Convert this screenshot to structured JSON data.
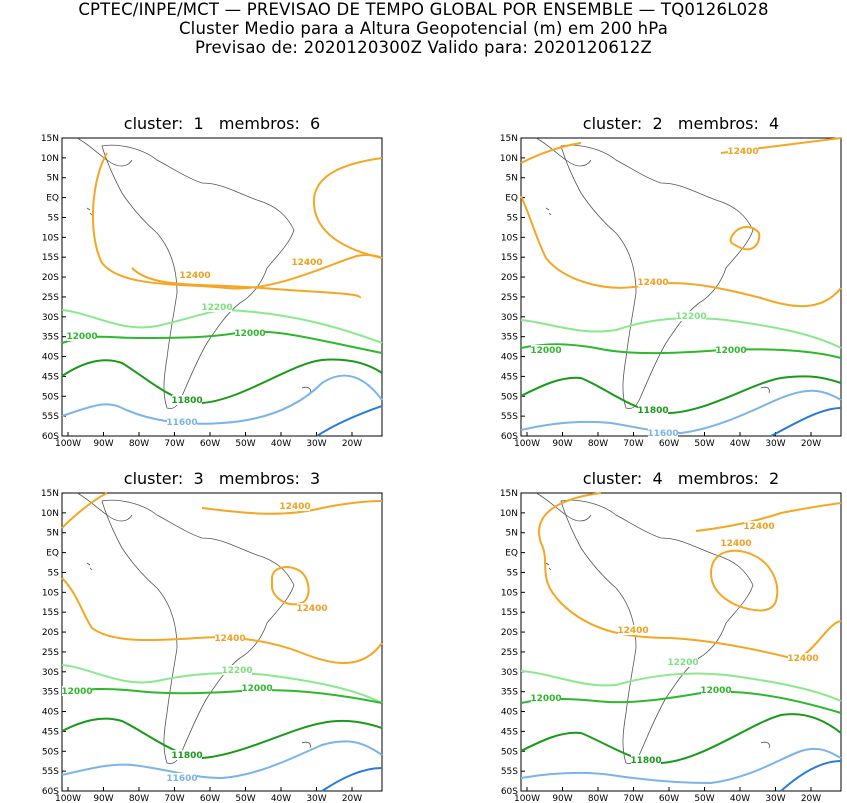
{
  "header": {
    "line1": "CPTEC/INPE/MCT — PREVISAO DE TEMPO GLOBAL POR ENSEMBLE — TQ0126L028",
    "line2": "Cluster Medio para a Altura Geopotencial (m) em 200 hPa",
    "line3": "Previsao de: 2020120300Z   Valido para: 2020120612Z"
  },
  "map_axes": {
    "lat_labels": [
      "15N",
      "10N",
      "5N",
      "EQ",
      "5S",
      "10S",
      "15S",
      "20S",
      "25S",
      "30S",
      "35S",
      "40S",
      "45S",
      "50S",
      "55S",
      "60S"
    ],
    "lon_labels": [
      "100W",
      "90W",
      "80W",
      "70W",
      "60W",
      "50W",
      "40W",
      "30W",
      "20W"
    ]
  },
  "contour_colors": {
    "12400": "#f5a623",
    "12200": "#7fe07f",
    "12000": "#2db82d",
    "11800": "#1a9a1a",
    "11600": "#7ab4ea",
    "11400": "#2a7ad8"
  },
  "panels": [
    {
      "title": "cluster:  1   membros:  6",
      "labels": [
        {
          "text": "12400",
          "color": "#f0a020"
        },
        {
          "text": "12400",
          "color": "#f0a020"
        },
        {
          "text": "12200",
          "color": "#7fe07f"
        },
        {
          "text": "12000",
          "color": "#2db82d"
        },
        {
          "text": "12000",
          "color": "#2db82d"
        },
        {
          "text": "11800",
          "color": "#1a9a1a"
        },
        {
          "text": "11600",
          "color": "#7ab4ea"
        }
      ]
    },
    {
      "title": "cluster:  2   membros:  4",
      "labels": [
        {
          "text": "12400",
          "color": "#f0a020"
        },
        {
          "text": "12400",
          "color": "#f0a020"
        },
        {
          "text": "12200",
          "color": "#7fe07f"
        },
        {
          "text": "12000",
          "color": "#2db82d"
        },
        {
          "text": "12000",
          "color": "#2db82d"
        },
        {
          "text": "11800",
          "color": "#1a9a1a"
        },
        {
          "text": "11600",
          "color": "#7ab4ea"
        }
      ]
    },
    {
      "title": "cluster:  3   membros:  3",
      "labels": [
        {
          "text": "12400",
          "color": "#f0a020"
        },
        {
          "text": "12400",
          "color": "#f0a020"
        },
        {
          "text": "12400",
          "color": "#f0a020"
        },
        {
          "text": "12200",
          "color": "#7fe07f"
        },
        {
          "text": "12000",
          "color": "#2db82d"
        },
        {
          "text": "12000",
          "color": "#2db82d"
        },
        {
          "text": "11800",
          "color": "#1a9a1a"
        },
        {
          "text": "11600",
          "color": "#7ab4ea"
        }
      ]
    },
    {
      "title": "cluster:  4   membros:  2",
      "labels": [
        {
          "text": "12400",
          "color": "#f0a020"
        },
        {
          "text": "12400",
          "color": "#f0a020"
        },
        {
          "text": "12400",
          "color": "#f0a020"
        },
        {
          "text": "12400",
          "color": "#f0a020"
        },
        {
          "text": "12200",
          "color": "#7fe07f"
        },
        {
          "text": "12000",
          "color": "#2db82d"
        },
        {
          "text": "12000",
          "color": "#2db82d"
        },
        {
          "text": "11800",
          "color": "#1a9a1a"
        }
      ]
    }
  ]
}
